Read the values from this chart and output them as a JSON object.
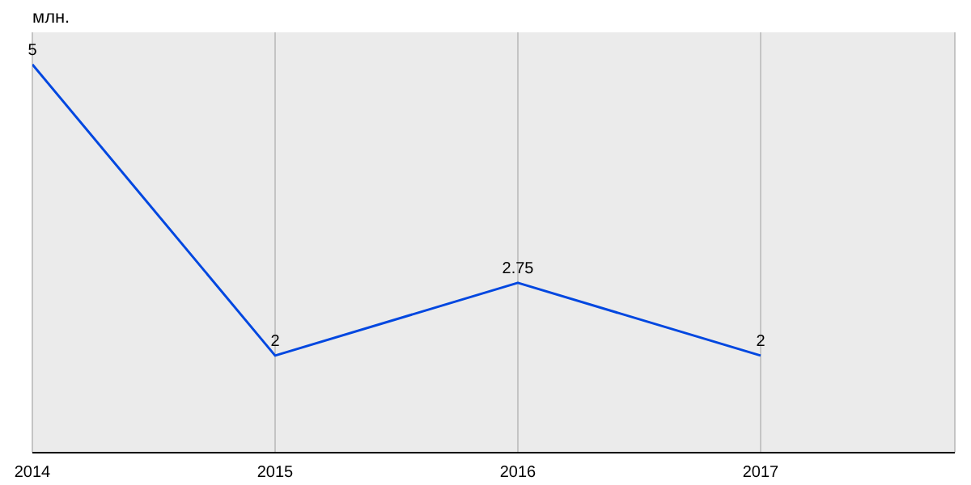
{
  "chart_data": {
    "type": "line",
    "ylabel": "млн.",
    "x": [
      2014,
      2015,
      2016,
      2017
    ],
    "xlim": [
      2014,
      2017.8
    ],
    "xticks": [
      2014,
      2015,
      2016,
      2017
    ],
    "series": [
      {
        "color": "#0047e0",
        "values": [
          5,
          2,
          2.75,
          2
        ]
      }
    ],
    "data_labels": true,
    "grid": "x",
    "marker": "none",
    "line_style": "solid"
  }
}
